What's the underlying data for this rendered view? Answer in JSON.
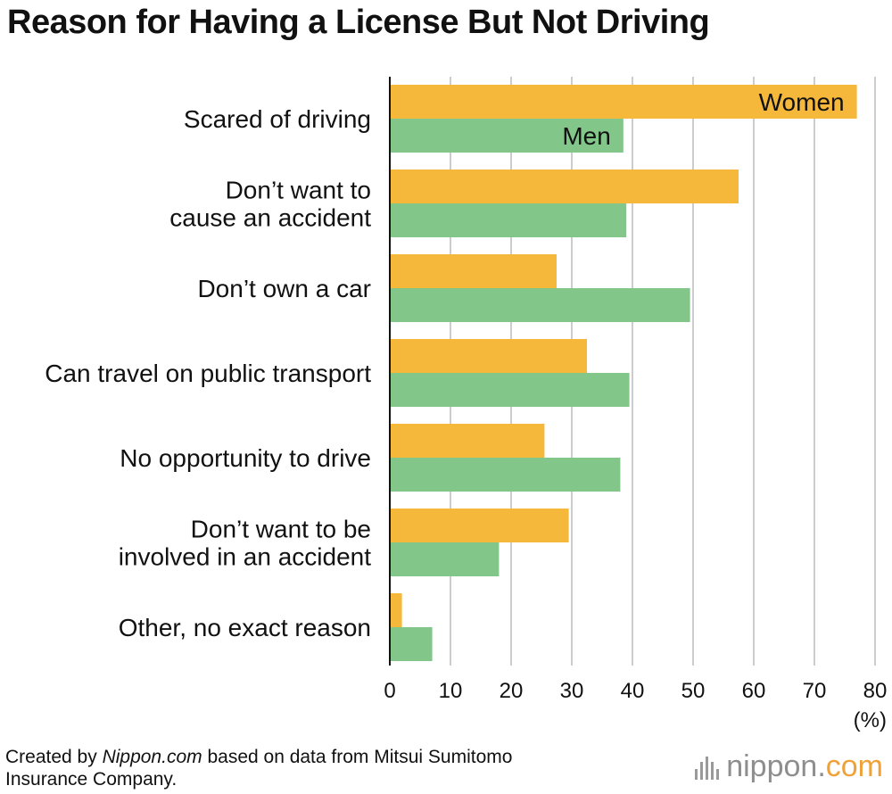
{
  "title": "Reason for Having a License But Not Driving",
  "footer": {
    "prefix": "Created by ",
    "source_italic": "Nippon.com",
    "rest_line1": " based on data from Mitsui Sumitomo",
    "line2": "Insurance Company."
  },
  "logo": {
    "name": "nippon",
    "dot": ".",
    "suffix": "com"
  },
  "colors": {
    "women": "#f5b83a",
    "men": "#82c68a",
    "grid": "#cccccc",
    "axis": "#111111"
  },
  "chart_data": {
    "type": "bar",
    "orientation": "horizontal",
    "title": "Reason for Having a License But Not Driving",
    "categories": [
      [
        "Scared of driving"
      ],
      [
        "Don’t want to",
        "cause an accident"
      ],
      [
        "Don’t own a car"
      ],
      [
        "Can travel on public transport"
      ],
      [
        "No opportunity to drive"
      ],
      [
        "Don’t want to be",
        "involved in an accident"
      ],
      [
        "Other, no exact reason"
      ]
    ],
    "series": [
      {
        "name": "Women",
        "values": [
          77,
          57.5,
          27.5,
          32.5,
          25.5,
          29.5,
          2
        ]
      },
      {
        "name": "Men",
        "values": [
          38.5,
          39,
          49.5,
          39.5,
          38,
          18,
          7
        ]
      }
    ],
    "xlim": [
      0,
      80
    ],
    "xticks": [
      0,
      10,
      20,
      30,
      40,
      50,
      60,
      70,
      80
    ],
    "xunit": "(%)",
    "grid": true,
    "legend": "inline-labels-on-first-bars"
  }
}
